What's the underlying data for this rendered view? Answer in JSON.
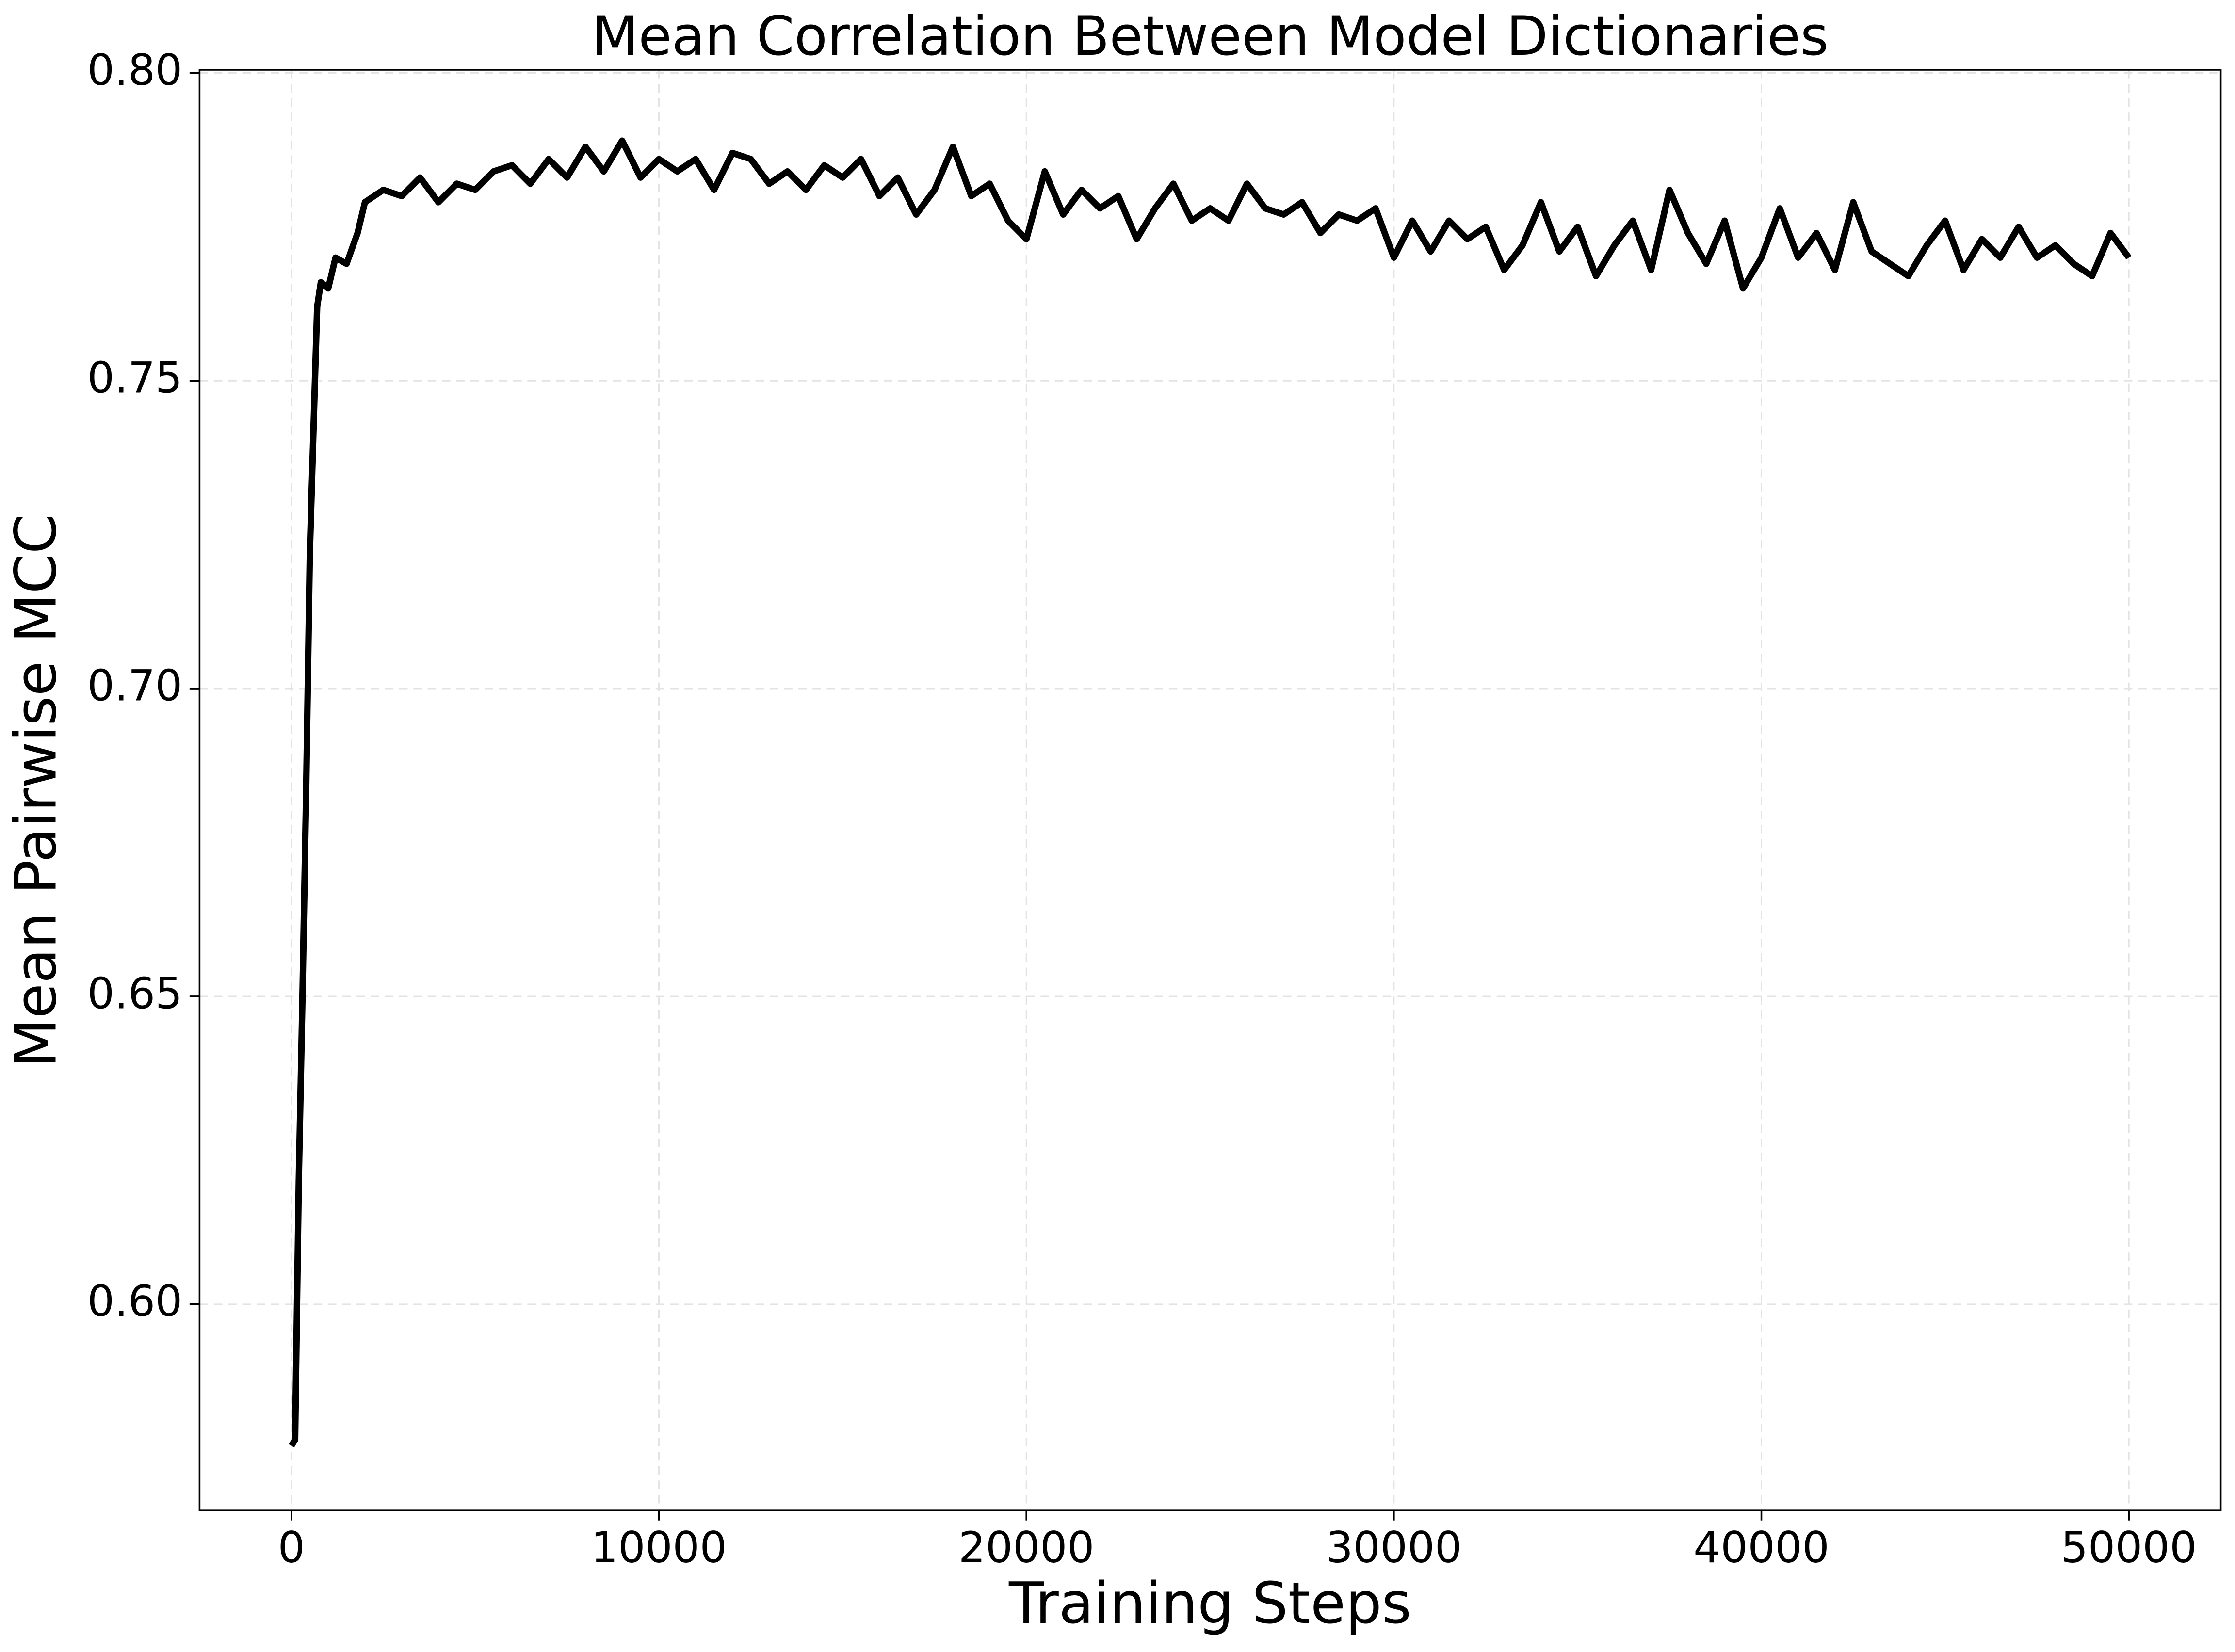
{
  "chart_data": {
    "type": "line",
    "title": "Mean Correlation Between Model Dictionaries",
    "xlabel": "Training Steps",
    "ylabel": "Mean Pairwise MCC",
    "x": [
      0,
      100,
      200,
      300,
      400,
      500,
      600,
      700,
      800,
      1000,
      1200,
      1500,
      1800,
      2000,
      2500,
      3000,
      3500,
      4000,
      4500,
      5000,
      5500,
      6000,
      6500,
      7000,
      7500,
      8000,
      8500,
      9000,
      9500,
      10000,
      10500,
      11000,
      11500,
      12000,
      12500,
      13000,
      13500,
      14000,
      14500,
      15000,
      15500,
      16000,
      16500,
      17000,
      17500,
      18000,
      18500,
      19000,
      19500,
      20000,
      20500,
      21000,
      21500,
      22000,
      22500,
      23000,
      23500,
      24000,
      24500,
      25000,
      25500,
      26000,
      26500,
      27000,
      27500,
      28000,
      28500,
      29000,
      29500,
      30000,
      30500,
      31000,
      31500,
      32000,
      32500,
      33000,
      33500,
      34000,
      34500,
      35000,
      35500,
      36000,
      36500,
      37000,
      37500,
      38000,
      38500,
      39000,
      39500,
      40000,
      40500,
      41000,
      41500,
      42000,
      42500,
      43000,
      43500,
      44000,
      44500,
      45000,
      45500,
      46000,
      46500,
      47000,
      47500,
      48000,
      48500,
      49000,
      49500,
      50000
    ],
    "series": [
      {
        "name": "Mean Pairwise MCC",
        "color": "#000000",
        "values": [
          0.577,
          0.578,
          0.62,
          0.65,
          0.683,
          0.722,
          0.742,
          0.762,
          0.766,
          0.765,
          0.77,
          0.769,
          0.774,
          0.779,
          0.781,
          0.78,
          0.783,
          0.779,
          0.782,
          0.781,
          0.784,
          0.785,
          0.782,
          0.786,
          0.783,
          0.788,
          0.784,
          0.789,
          0.783,
          0.786,
          0.784,
          0.786,
          0.781,
          0.787,
          0.786,
          0.782,
          0.784,
          0.781,
          0.785,
          0.783,
          0.786,
          0.78,
          0.783,
          0.777,
          0.781,
          0.788,
          0.78,
          0.782,
          0.776,
          0.773,
          0.784,
          0.777,
          0.781,
          0.778,
          0.78,
          0.773,
          0.778,
          0.782,
          0.776,
          0.778,
          0.776,
          0.782,
          0.778,
          0.777,
          0.779,
          0.774,
          0.777,
          0.776,
          0.778,
          0.77,
          0.776,
          0.771,
          0.776,
          0.773,
          0.775,
          0.768,
          0.772,
          0.779,
          0.771,
          0.775,
          0.767,
          0.772,
          0.776,
          0.768,
          0.781,
          0.774,
          0.769,
          0.776,
          0.765,
          0.77,
          0.778,
          0.77,
          0.774,
          0.768,
          0.779,
          0.771,
          0.769,
          0.767,
          0.772,
          0.776,
          0.768,
          0.773,
          0.77,
          0.775,
          0.77,
          0.772,
          0.769,
          0.767,
          0.774,
          0.77
        ]
      }
    ],
    "xlim": [
      -2500,
      52500
    ],
    "ylim": [
      0.5665,
      0.8005
    ],
    "xticks": [
      0,
      10000,
      20000,
      30000,
      40000,
      50000
    ],
    "yticks": [
      {
        "value": 0.6,
        "label": "0.60"
      },
      0.65,
      {
        "value": 0.7,
        "label": "0.70"
      },
      0.75,
      {
        "value": 0.8,
        "label": "0.80"
      }
    ],
    "grid": true
  }
}
